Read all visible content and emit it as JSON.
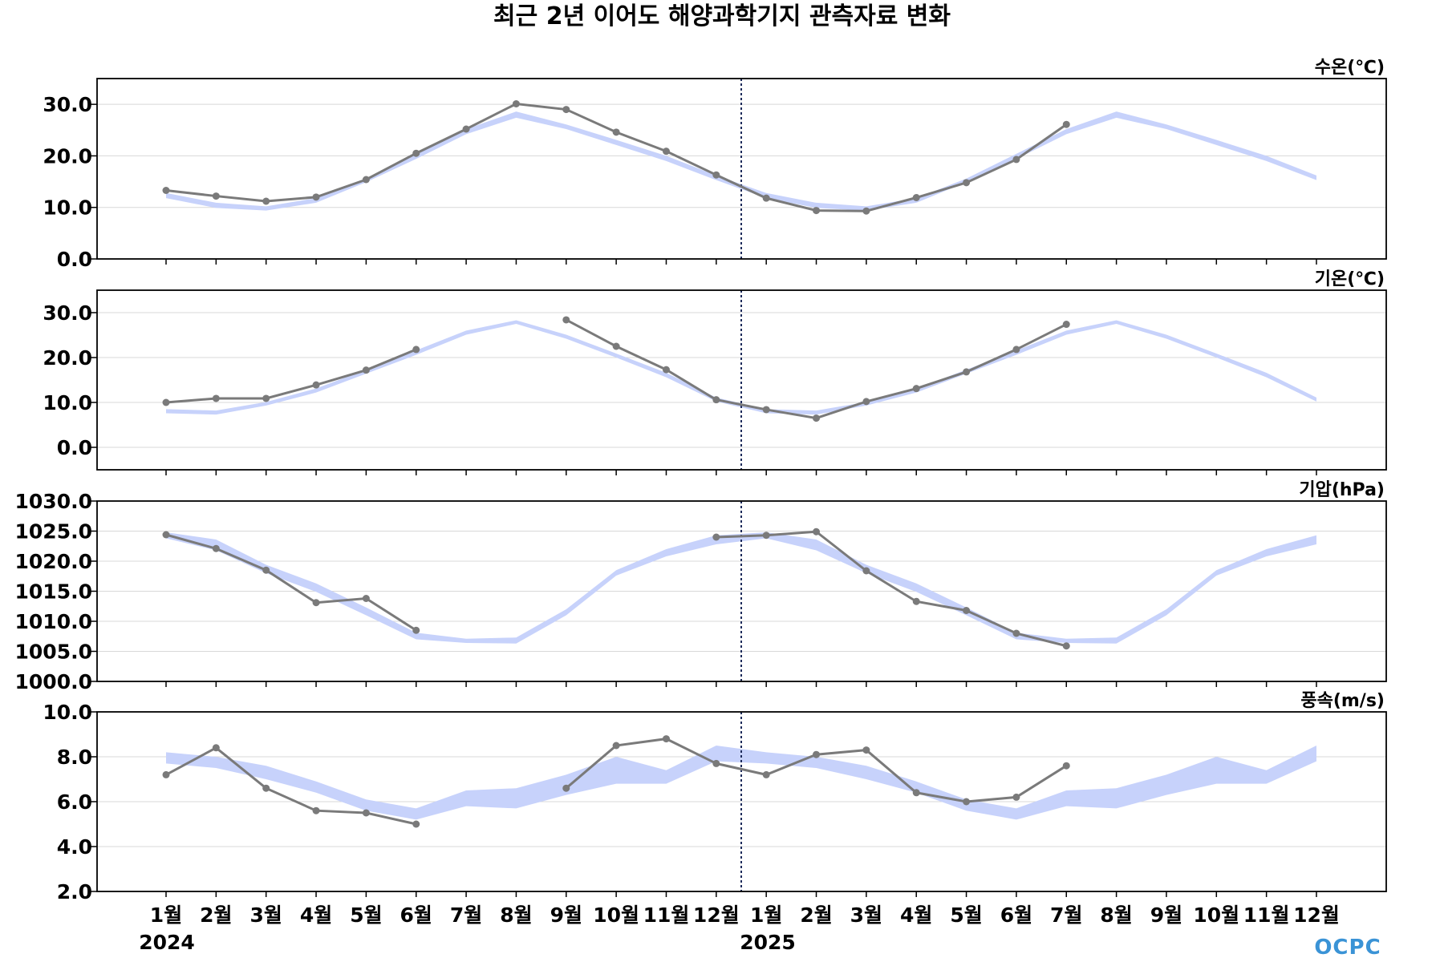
{
  "title": "최근 2년 이어도 해양과학기지 관측자료 변화",
  "colors": {
    "band": "#c7d2fb",
    "line": "#7a7a7a",
    "divider": "#1c2a5a",
    "grid": "#d8d8d8",
    "logo": "#3a93d6"
  },
  "x_tick_labels": [
    "1월",
    "2월",
    "3월",
    "4월",
    "5월",
    "6월",
    "7월",
    "8월",
    "9월",
    "10월",
    "11월",
    "12월",
    "1월",
    "2월",
    "3월",
    "4월",
    "5월",
    "6월",
    "7월",
    "8월",
    "9월",
    "10월",
    "11월",
    "12월"
  ],
  "year_labels": [
    "2024",
    "2025"
  ],
  "logo_text": "OCPC",
  "chart_data": [
    {
      "type": "line",
      "ylabel": "수온(℃)",
      "ylim": [
        0,
        35
      ],
      "yticks": [
        "0.0",
        "10.0",
        "20.0",
        "30.0"
      ],
      "ytick_values": [
        0,
        10,
        20,
        30
      ],
      "grid": true,
      "band_lower": [
        11.8,
        9.9,
        9.4,
        10.9,
        14.9,
        19.4,
        24.2,
        27.4,
        25.2,
        22.1,
        19.0,
        15.3,
        11.8,
        9.9,
        9.4,
        10.9,
        14.9,
        19.4,
        24.2,
        27.4,
        25.2,
        22.1,
        19.0,
        15.3
      ],
      "band_upper": [
        12.8,
        10.9,
        10.2,
        11.8,
        15.6,
        20.4,
        25.2,
        28.6,
        26.1,
        23.1,
        20.0,
        16.2,
        12.8,
        10.9,
        10.2,
        11.8,
        15.6,
        20.4,
        25.2,
        28.6,
        26.1,
        23.1,
        20.0,
        16.2
      ],
      "series": [
        {
          "values": [
            13.3,
            12.2,
            11.2,
            12.0,
            15.4,
            20.5,
            25.2,
            30.1,
            29.0,
            24.6,
            20.9,
            16.3,
            11.8,
            9.4,
            9.3,
            11.9,
            14.8,
            19.3,
            26.1,
            null,
            null,
            null,
            null,
            null
          ]
        }
      ]
    },
    {
      "type": "line",
      "ylabel": "기온(℃)",
      "ylim": [
        -5,
        35
      ],
      "yticks": [
        "0.0",
        "10.0",
        "20.0",
        "30.0"
      ],
      "ytick_values": [
        0,
        10,
        20,
        30
      ],
      "grid": true,
      "band_lower": [
        7.6,
        7.3,
        9.3,
        12.2,
        16.4,
        20.6,
        25.1,
        27.5,
        24.2,
        20.0,
        15.6,
        10.2,
        7.6,
        7.3,
        9.3,
        12.2,
        16.4,
        20.6,
        25.1,
        27.5,
        24.2,
        20.0,
        15.6,
        10.2
      ],
      "band_upper": [
        8.5,
        8.2,
        10.1,
        13.1,
        17.3,
        21.6,
        26.0,
        28.3,
        25.1,
        20.9,
        16.6,
        11.1,
        8.5,
        8.2,
        10.1,
        13.1,
        17.3,
        21.6,
        26.0,
        28.3,
        25.1,
        20.9,
        16.6,
        11.1
      ],
      "series": [
        {
          "values": [
            10.0,
            10.9,
            10.9,
            13.9,
            17.2,
            21.8,
            null,
            null,
            28.4,
            22.5,
            17.3,
            10.6,
            8.4,
            6.5,
            10.2,
            13.1,
            16.8,
            21.8,
            27.4,
            null,
            null,
            null,
            null,
            null
          ]
        }
      ]
    },
    {
      "type": "line",
      "ylabel": "기압(hPa)",
      "ylim": [
        1000,
        1030
      ],
      "yticks": [
        "1000.0",
        "1005.0",
        "1010.0",
        "1015.0",
        "1020.0",
        "1025.0",
        "1030.0"
      ],
      "ytick_values": [
        1000,
        1005,
        1010,
        1015,
        1020,
        1025,
        1030
      ],
      "grid": true,
      "band_lower": [
        1023.8,
        1021.8,
        1018.0,
        1014.9,
        1011.0,
        1007.0,
        1006.4,
        1006.3,
        1011.0,
        1017.6,
        1020.8,
        1022.8,
        1023.8,
        1021.8,
        1018.0,
        1014.9,
        1011.0,
        1007.0,
        1006.4,
        1006.3,
        1011.0,
        1017.6,
        1020.8,
        1022.8
      ],
      "band_upper": [
        1024.8,
        1023.6,
        1019.4,
        1016.3,
        1012.3,
        1008.1,
        1007.1,
        1007.3,
        1012.0,
        1018.5,
        1022.0,
        1024.3,
        1024.8,
        1023.6,
        1019.4,
        1016.3,
        1012.3,
        1008.1,
        1007.1,
        1007.3,
        1012.0,
        1018.5,
        1022.0,
        1024.3
      ],
      "series": [
        {
          "values": [
            1024.4,
            1022.1,
            1018.5,
            1013.1,
            1013.8,
            1008.5,
            null,
            null,
            null,
            null,
            null,
            1024.0,
            1024.3,
            1024.9,
            1018.4,
            1013.3,
            1011.8,
            1008.0,
            1005.9,
            null,
            null,
            null,
            null,
            null
          ]
        }
      ]
    },
    {
      "type": "line",
      "ylabel": "풍속(m/s)",
      "ylim": [
        2,
        10
      ],
      "yticks": [
        "2.0",
        "4.0",
        "6.0",
        "8.0",
        "10.0"
      ],
      "ytick_values": [
        2,
        4,
        6,
        8,
        10
      ],
      "grid": true,
      "band_lower": [
        7.7,
        7.5,
        7.0,
        6.4,
        5.6,
        5.2,
        5.8,
        5.7,
        6.3,
        6.8,
        6.8,
        7.8,
        7.7,
        7.5,
        7.0,
        6.4,
        5.6,
        5.2,
        5.8,
        5.7,
        6.3,
        6.8,
        6.8,
        7.8
      ],
      "band_upper": [
        8.2,
        8.0,
        7.6,
        6.9,
        6.1,
        5.7,
        6.5,
        6.6,
        7.2,
        8.0,
        7.4,
        8.5,
        8.2,
        8.0,
        7.6,
        6.9,
        6.1,
        5.7,
        6.5,
        6.6,
        7.2,
        8.0,
        7.4,
        8.5
      ],
      "series": [
        {
          "values": [
            7.2,
            8.4,
            6.6,
            5.6,
            5.5,
            5.0,
            null,
            null,
            6.6,
            8.5,
            8.8,
            7.7,
            7.2,
            8.1,
            8.3,
            6.4,
            6.0,
            6.2,
            7.6,
            null,
            null,
            null,
            null,
            null
          ]
        }
      ]
    }
  ]
}
